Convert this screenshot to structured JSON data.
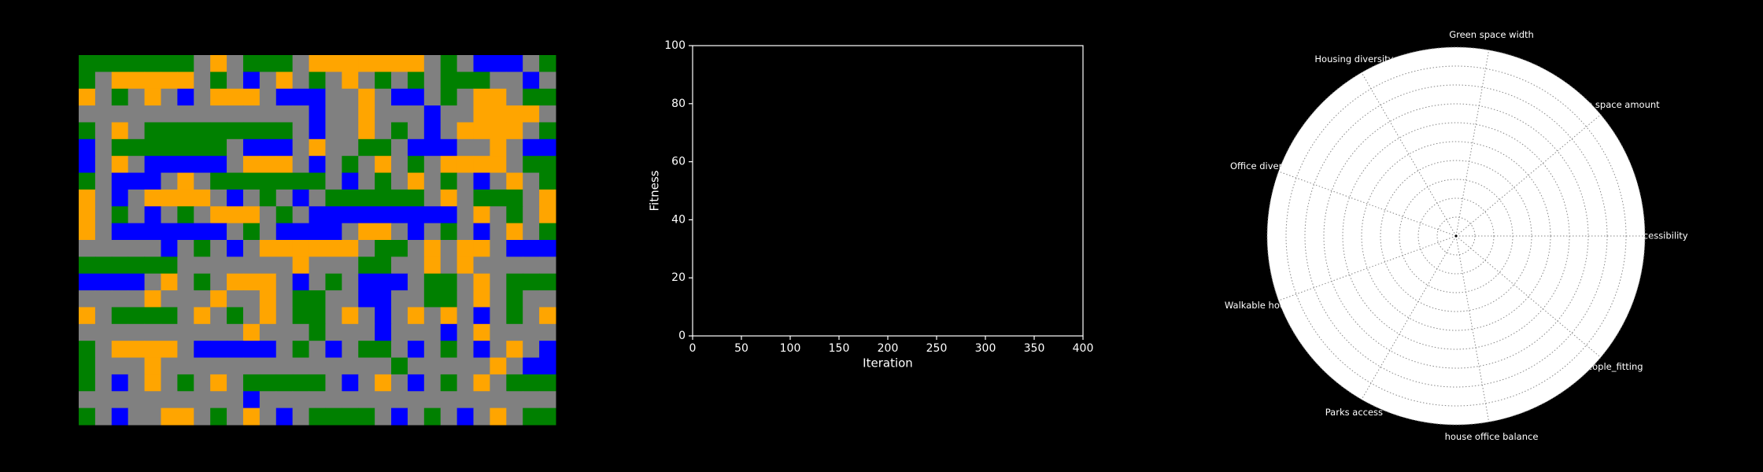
{
  "chart_data": [
    {
      "type": "grid",
      "colors": {
        "g": "#008000",
        "o": "#ffa500",
        "b": "#0000ff",
        ".": "#808080"
      },
      "rows": [
        "ggggggg.o.ggg.ooooooo.g.bbb.g",
        "g.ooooo.g.b.o.g.o.g.g.ggg..b.",
        "o.g.o.b.ooo.bbb..o.bb.g.oo.gg",
        "..............b..o...b..oooo.",
        "g.o.ggggggggg.b..o.g.b.oooo.g",
        "b.ggggggg.bbb.o..gg.bbb..o.bb",
        "b.o.bbbbb.ooo.b.g.o.g.oooo.gg",
        "g.bbb.o.ggggggg.b.g.o.g.b.o.g",
        "o.b.oooo.b.g.b.gggggg.o.ggg.o",
        "o.g.b.g.ooo.g.bbbbbbbbb.o.g.o",
        "o.bbbbbbb.g.bbbb.oo.b.g.b.o.g",
        ".....b.g.b.oooooo.gg.o.oo.bbb",
        "gggggg.......o...gg..o.o.....",
        "bbbb.o.g.ooo.b.g.bbb.gg.o.ggg",
        "....o...o..o.gg..bb..gg.o.g..",
        "o.gggg.o.g.o.gg.o.b.o.o.b.g.o",
        "..........o...g...b...b.o....",
        "g.oooo.bbbbb.g.b.gg.b.g.b.o.b",
        "g...o..............g.....o.bb",
        "g.b.o.g.o.ggggg.b.o.b.g.o.ggg",
        "..........b..................",
        "g.b..oo.g.o.b.gggg.b.g.b.o.gg"
      ]
    },
    {
      "type": "line",
      "x_label": "Iteration",
      "y_label": "Fitness",
      "xlim": [
        0,
        400
      ],
      "xticks": [
        0,
        50,
        100,
        150,
        200,
        250,
        300,
        350,
        400
      ],
      "ylim": [
        0,
        100
      ],
      "yticks": [
        0,
        20,
        40,
        60,
        80,
        100
      ],
      "series": []
    },
    {
      "type": "radar",
      "categories": [
        "Accessibility",
        "Green space amount",
        "Green space width",
        "Housing diversity",
        "Office diversity",
        "Walkable housing",
        "Parks access",
        "house office balance",
        "People_fitting"
      ]
    }
  ]
}
